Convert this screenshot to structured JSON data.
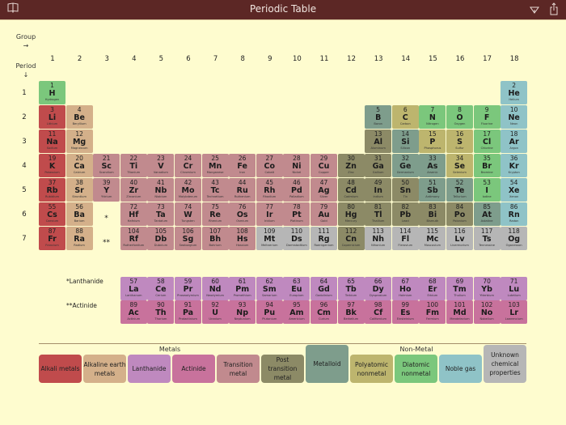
{
  "header": {
    "title": "Periodic Table",
    "left_icon": "book-icon",
    "right_icons": [
      "filter-icon",
      "share-icon"
    ]
  },
  "axes": {
    "group_label": "Group",
    "group_arrow": "→",
    "period_label": "Period",
    "period_arrow": "↓",
    "groups": [
      "1",
      "2",
      "3",
      "4",
      "5",
      "6",
      "7",
      "8",
      "9",
      "10",
      "11",
      "12",
      "13",
      "14",
      "15",
      "16",
      "17",
      "18"
    ],
    "periods": [
      "1",
      "2",
      "3",
      "4",
      "5",
      "6",
      "7"
    ]
  },
  "colors": {
    "alkali": "#c04b4c",
    "alkaline": "#d4b08a",
    "lanthanide": "#bf89bf",
    "actinide": "#c8729c",
    "transition": "#c18a8e",
    "post": "#8c8a66",
    "metalloid": "#7e9d8c",
    "polyatomic": "#bdb56e",
    "diatomic": "#7bc77c",
    "noble": "#8fc3c7",
    "unknown": "#b6b6b6"
  },
  "markers": {
    "lanthanide_star": "*",
    "actinide_star": "**"
  },
  "series_labels": {
    "lanthanide": "*Lanthanide",
    "actinide": "**Actinide"
  },
  "elements": [
    {
      "n": "1",
      "s": "H",
      "name": "Hydrogen",
      "g": 1,
      "p": 1,
      "c": "diatomic"
    },
    {
      "n": "2",
      "s": "He",
      "name": "Helium",
      "g": 18,
      "p": 1,
      "c": "noble"
    },
    {
      "n": "3",
      "s": "Li",
      "name": "Lithium",
      "g": 1,
      "p": 2,
      "c": "alkali"
    },
    {
      "n": "4",
      "s": "Be",
      "name": "Beryllium",
      "g": 2,
      "p": 2,
      "c": "alkaline"
    },
    {
      "n": "5",
      "s": "B",
      "name": "Boron",
      "g": 13,
      "p": 2,
      "c": "metalloid"
    },
    {
      "n": "6",
      "s": "C",
      "name": "Carbon",
      "g": 14,
      "p": 2,
      "c": "polyatomic"
    },
    {
      "n": "7",
      "s": "N",
      "name": "Nitrogen",
      "g": 15,
      "p": 2,
      "c": "diatomic"
    },
    {
      "n": "8",
      "s": "O",
      "name": "Oxygen",
      "g": 16,
      "p": 2,
      "c": "diatomic"
    },
    {
      "n": "9",
      "s": "F",
      "name": "Fluorine",
      "g": 17,
      "p": 2,
      "c": "diatomic"
    },
    {
      "n": "10",
      "s": "Ne",
      "name": "Neon",
      "g": 18,
      "p": 2,
      "c": "noble"
    },
    {
      "n": "11",
      "s": "Na",
      "name": "Sodium",
      "g": 1,
      "p": 3,
      "c": "alkali"
    },
    {
      "n": "12",
      "s": "Mg",
      "name": "Magnesium",
      "g": 2,
      "p": 3,
      "c": "alkaline"
    },
    {
      "n": "13",
      "s": "Al",
      "name": "Aluminum",
      "g": 13,
      "p": 3,
      "c": "post"
    },
    {
      "n": "14",
      "s": "Si",
      "name": "Silicon",
      "g": 14,
      "p": 3,
      "c": "metalloid"
    },
    {
      "n": "15",
      "s": "P",
      "name": "Phosphorus",
      "g": 15,
      "p": 3,
      "c": "polyatomic"
    },
    {
      "n": "16",
      "s": "S",
      "name": "Sulfur",
      "g": 16,
      "p": 3,
      "c": "polyatomic"
    },
    {
      "n": "17",
      "s": "Cl",
      "name": "Chlorine",
      "g": 17,
      "p": 3,
      "c": "diatomic"
    },
    {
      "n": "18",
      "s": "Ar",
      "name": "Argon",
      "g": 18,
      "p": 3,
      "c": "noble"
    },
    {
      "n": "19",
      "s": "K",
      "name": "Potassium",
      "g": 1,
      "p": 4,
      "c": "alkali"
    },
    {
      "n": "20",
      "s": "Ca",
      "name": "Calcium",
      "g": 2,
      "p": 4,
      "c": "alkaline"
    },
    {
      "n": "21",
      "s": "Sc",
      "name": "Scandium",
      "g": 3,
      "p": 4,
      "c": "transition"
    },
    {
      "n": "22",
      "s": "Ti",
      "name": "Titanium",
      "g": 4,
      "p": 4,
      "c": "transition"
    },
    {
      "n": "23",
      "s": "V",
      "name": "Vanadium",
      "g": 5,
      "p": 4,
      "c": "transition"
    },
    {
      "n": "24",
      "s": "Cr",
      "name": "Chromium",
      "g": 6,
      "p": 4,
      "c": "transition"
    },
    {
      "n": "25",
      "s": "Mn",
      "name": "Manganese",
      "g": 7,
      "p": 4,
      "c": "transition"
    },
    {
      "n": "26",
      "s": "Fe",
      "name": "Iron",
      "g": 8,
      "p": 4,
      "c": "transition"
    },
    {
      "n": "27",
      "s": "Co",
      "name": "Cobalt",
      "g": 9,
      "p": 4,
      "c": "transition"
    },
    {
      "n": "28",
      "s": "Ni",
      "name": "Nickel",
      "g": 10,
      "p": 4,
      "c": "transition"
    },
    {
      "n": "29",
      "s": "Cu",
      "name": "Copper",
      "g": 11,
      "p": 4,
      "c": "transition"
    },
    {
      "n": "30",
      "s": "Zn",
      "name": "Zinc",
      "g": 12,
      "p": 4,
      "c": "post"
    },
    {
      "n": "31",
      "s": "Ga",
      "name": "Gallium",
      "g": 13,
      "p": 4,
      "c": "post"
    },
    {
      "n": "32",
      "s": "Ge",
      "name": "Germanium",
      "g": 14,
      "p": 4,
      "c": "metalloid"
    },
    {
      "n": "33",
      "s": "As",
      "name": "Arsenic",
      "g": 15,
      "p": 4,
      "c": "metalloid"
    },
    {
      "n": "34",
      "s": "Se",
      "name": "Selenium",
      "g": 16,
      "p": 4,
      "c": "polyatomic"
    },
    {
      "n": "35",
      "s": "Br",
      "name": "Bromine",
      "g": 17,
      "p": 4,
      "c": "diatomic"
    },
    {
      "n": "36",
      "s": "Kr",
      "name": "Krypton",
      "g": 18,
      "p": 4,
      "c": "noble"
    },
    {
      "n": "37",
      "s": "Rb",
      "name": "Rubidium",
      "g": 1,
      "p": 5,
      "c": "alkali"
    },
    {
      "n": "38",
      "s": "Sr",
      "name": "Strontium",
      "g": 2,
      "p": 5,
      "c": "alkaline"
    },
    {
      "n": "39",
      "s": "Y",
      "name": "Yttrium",
      "g": 3,
      "p": 5,
      "c": "transition"
    },
    {
      "n": "40",
      "s": "Zr",
      "name": "Zirconium",
      "g": 4,
      "p": 5,
      "c": "transition"
    },
    {
      "n": "41",
      "s": "Nb",
      "name": "Niobium",
      "g": 5,
      "p": 5,
      "c": "transition"
    },
    {
      "n": "42",
      "s": "Mo",
      "name": "Molybdenum",
      "g": 6,
      "p": 5,
      "c": "transition"
    },
    {
      "n": "43",
      "s": "Tc",
      "name": "Technetium",
      "g": 7,
      "p": 5,
      "c": "transition"
    },
    {
      "n": "44",
      "s": "Ru",
      "name": "Ruthenium",
      "g": 8,
      "p": 5,
      "c": "transition"
    },
    {
      "n": "45",
      "s": "Rh",
      "name": "Rhodium",
      "g": 9,
      "p": 5,
      "c": "transition"
    },
    {
      "n": "46",
      "s": "Pd",
      "name": "Palladium",
      "g": 10,
      "p": 5,
      "c": "transition"
    },
    {
      "n": "47",
      "s": "Ag",
      "name": "Silver",
      "g": 11,
      "p": 5,
      "c": "transition"
    },
    {
      "n": "48",
      "s": "Cd",
      "name": "Cadmium",
      "g": 12,
      "p": 5,
      "c": "post"
    },
    {
      "n": "49",
      "s": "In",
      "name": "Indium",
      "g": 13,
      "p": 5,
      "c": "post"
    },
    {
      "n": "50",
      "s": "Sn",
      "name": "Tin",
      "g": 14,
      "p": 5,
      "c": "post"
    },
    {
      "n": "51",
      "s": "Sb",
      "name": "Antimony",
      "g": 15,
      "p": 5,
      "c": "metalloid"
    },
    {
      "n": "52",
      "s": "Te",
      "name": "Tellurium",
      "g": 16,
      "p": 5,
      "c": "metalloid"
    },
    {
      "n": "53",
      "s": "I",
      "name": "Iodine",
      "g": 17,
      "p": 5,
      "c": "diatomic"
    },
    {
      "n": "54",
      "s": "Xe",
      "name": "Xenon",
      "g": 18,
      "p": 5,
      "c": "noble"
    },
    {
      "n": "55",
      "s": "Cs",
      "name": "Caesium",
      "g": 1,
      "p": 6,
      "c": "alkali"
    },
    {
      "n": "56",
      "s": "Ba",
      "name": "Barium",
      "g": 2,
      "p": 6,
      "c": "alkaline"
    },
    {
      "n": "72",
      "s": "Hf",
      "name": "Hafnium",
      "g": 4,
      "p": 6,
      "c": "transition"
    },
    {
      "n": "73",
      "s": "Ta",
      "name": "Tantalum",
      "g": 5,
      "p": 6,
      "c": "transition"
    },
    {
      "n": "74",
      "s": "W",
      "name": "Tungsten",
      "g": 6,
      "p": 6,
      "c": "transition"
    },
    {
      "n": "75",
      "s": "Re",
      "name": "Rhenium",
      "g": 7,
      "p": 6,
      "c": "transition"
    },
    {
      "n": "76",
      "s": "Os",
      "name": "Osmium",
      "g": 8,
      "p": 6,
      "c": "transition"
    },
    {
      "n": "77",
      "s": "Ir",
      "name": "Iridium",
      "g": 9,
      "p": 6,
      "c": "transition"
    },
    {
      "n": "78",
      "s": "Pt",
      "name": "Platinum",
      "g": 10,
      "p": 6,
      "c": "transition"
    },
    {
      "n": "79",
      "s": "Au",
      "name": "Gold",
      "g": 11,
      "p": 6,
      "c": "transition"
    },
    {
      "n": "80",
      "s": "Hg",
      "name": "Mercury",
      "g": 12,
      "p": 6,
      "c": "post"
    },
    {
      "n": "81",
      "s": "Tl",
      "name": "Thallium",
      "g": 13,
      "p": 6,
      "c": "post"
    },
    {
      "n": "82",
      "s": "Pb",
      "name": "Lead",
      "g": 14,
      "p": 6,
      "c": "post"
    },
    {
      "n": "83",
      "s": "Bi",
      "name": "Bismuth",
      "g": 15,
      "p": 6,
      "c": "post"
    },
    {
      "n": "84",
      "s": "Po",
      "name": "Polonium",
      "g": 16,
      "p": 6,
      "c": "post"
    },
    {
      "n": "85",
      "s": "At",
      "name": "Astatine",
      "g": 17,
      "p": 6,
      "c": "metalloid"
    },
    {
      "n": "86",
      "s": "Rn",
      "name": "Radon",
      "g": 18,
      "p": 6,
      "c": "noble"
    },
    {
      "n": "87",
      "s": "Fr",
      "name": "Francium",
      "g": 1,
      "p": 7,
      "c": "alkali"
    },
    {
      "n": "88",
      "s": "Ra",
      "name": "Radium",
      "g": 2,
      "p": 7,
      "c": "alkaline"
    },
    {
      "n": "104",
      "s": "Rf",
      "name": "Rutherfordium",
      "g": 4,
      "p": 7,
      "c": "transition"
    },
    {
      "n": "105",
      "s": "Db",
      "name": "Dubnium",
      "g": 5,
      "p": 7,
      "c": "transition"
    },
    {
      "n": "106",
      "s": "Sg",
      "name": "Seaborgium",
      "g": 6,
      "p": 7,
      "c": "transition"
    },
    {
      "n": "107",
      "s": "Bh",
      "name": "Bohrium",
      "g": 7,
      "p": 7,
      "c": "transition"
    },
    {
      "n": "108",
      "s": "Hs",
      "name": "Hassium",
      "g": 8,
      "p": 7,
      "c": "transition"
    },
    {
      "n": "109",
      "s": "Mt",
      "name": "Meitnerium",
      "g": 9,
      "p": 7,
      "c": "unknown"
    },
    {
      "n": "110",
      "s": "Ds",
      "name": "Darmstadtium",
      "g": 10,
      "p": 7,
      "c": "unknown"
    },
    {
      "n": "111",
      "s": "Rg",
      "name": "Roentgenium",
      "g": 11,
      "p": 7,
      "c": "unknown"
    },
    {
      "n": "112",
      "s": "Cn",
      "name": "Copernicium",
      "g": 12,
      "p": 7,
      "c": "post"
    },
    {
      "n": "113",
      "s": "Nh",
      "name": "Nihonium",
      "g": 13,
      "p": 7,
      "c": "unknown"
    },
    {
      "n": "114",
      "s": "Fl",
      "name": "Flerovium",
      "g": 14,
      "p": 7,
      "c": "unknown"
    },
    {
      "n": "115",
      "s": "Mc",
      "name": "Moscovium",
      "g": 15,
      "p": 7,
      "c": "unknown"
    },
    {
      "n": "116",
      "s": "Lv",
      "name": "Livermorium",
      "g": 16,
      "p": 7,
      "c": "unknown"
    },
    {
      "n": "117",
      "s": "Ts",
      "name": "Tennessine",
      "g": 17,
      "p": 7,
      "c": "unknown"
    },
    {
      "n": "118",
      "s": "Og",
      "name": "Oganesson",
      "g": 18,
      "p": 7,
      "c": "unknown"
    }
  ],
  "lanthanides": [
    {
      "n": "57",
      "s": "La",
      "name": "Lanthanum"
    },
    {
      "n": "58",
      "s": "Ce",
      "name": "Cerium"
    },
    {
      "n": "59",
      "s": "Pr",
      "name": "Praseodymium"
    },
    {
      "n": "60",
      "s": "Nd",
      "name": "Neodymium"
    },
    {
      "n": "61",
      "s": "Pm",
      "name": "Promethium"
    },
    {
      "n": "62",
      "s": "Sm",
      "name": "Samarium"
    },
    {
      "n": "63",
      "s": "Eu",
      "name": "Europium"
    },
    {
      "n": "64",
      "s": "Gd",
      "name": "Gadolinium"
    },
    {
      "n": "65",
      "s": "Tb",
      "name": "Terbium"
    },
    {
      "n": "66",
      "s": "Dy",
      "name": "Dysprosium"
    },
    {
      "n": "67",
      "s": "Ho",
      "name": "Holmium"
    },
    {
      "n": "68",
      "s": "Er",
      "name": "Erbium"
    },
    {
      "n": "69",
      "s": "Tm",
      "name": "Thulium"
    },
    {
      "n": "70",
      "s": "Yb",
      "name": "Ytterbium"
    },
    {
      "n": "71",
      "s": "Lu",
      "name": "Lutetium"
    }
  ],
  "actinides": [
    {
      "n": "89",
      "s": "Ac",
      "name": "Actinium"
    },
    {
      "n": "90",
      "s": "Th",
      "name": "Thorium"
    },
    {
      "n": "91",
      "s": "Pa",
      "name": "Protactinium"
    },
    {
      "n": "92",
      "s": "U",
      "name": "Uranium"
    },
    {
      "n": "93",
      "s": "Np",
      "name": "Neptunium"
    },
    {
      "n": "94",
      "s": "Pu",
      "name": "Plutonium"
    },
    {
      "n": "95",
      "s": "Am",
      "name": "Americium"
    },
    {
      "n": "96",
      "s": "Cm",
      "name": "Curium"
    },
    {
      "n": "97",
      "s": "Bk",
      "name": "Berkelium"
    },
    {
      "n": "98",
      "s": "Cf",
      "name": "Californium"
    },
    {
      "n": "99",
      "s": "Es",
      "name": "Einsteinium"
    },
    {
      "n": "100",
      "s": "Fm",
      "name": "Fermium"
    },
    {
      "n": "101",
      "s": "Md",
      "name": "Mendelevium"
    },
    {
      "n": "102",
      "s": "No",
      "name": "Nobelium"
    },
    {
      "n": "103",
      "s": "Lr",
      "name": "Lawrencium"
    }
  ],
  "legend": {
    "metals_header": "Metals",
    "nonmetal_header": "Non-Metal",
    "items": [
      {
        "label": "Alkali metals",
        "c": "alkali"
      },
      {
        "label": "Alkaline earth metals",
        "c": "alkaline"
      },
      {
        "label": "Lanthanide",
        "c": "lanthanide"
      },
      {
        "label": "Actinide",
        "c": "actinide"
      },
      {
        "label": "Transition metal",
        "c": "transition"
      },
      {
        "label": "Post transition metal",
        "c": "post"
      },
      {
        "label": "Metalloid",
        "c": "metalloid"
      },
      {
        "label": "Polyatomic nonmetal",
        "c": "polyatomic"
      },
      {
        "label": "Diatomic nonmetal",
        "c": "diatomic"
      },
      {
        "label": "Noble gas",
        "c": "noble"
      },
      {
        "label": "Unknown chemical properties",
        "c": "unknown"
      }
    ]
  }
}
